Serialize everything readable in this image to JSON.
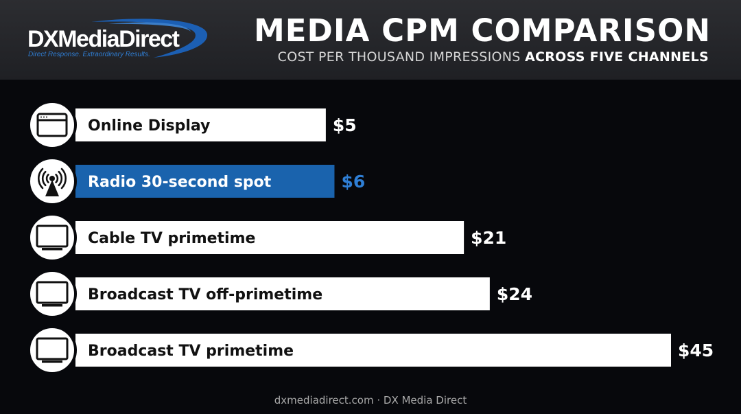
{
  "header": {
    "logo_text": "DXMediaDirect",
    "logo_tagline": "Direct Response. Extraordinary Results.",
    "title": "MEDIA CPM COMPARISON",
    "subtitle_part1": "COST PER THOUSAND IMPRESSIONS",
    "subtitle_part2": "ACROSS FIVE CHANNELS"
  },
  "footer": {
    "text": "dxmediadirect.com · DX Media Direct"
  },
  "colors": {
    "bar_default": "#ffffff",
    "bar_highlight": "#1a63ad",
    "label_default": "#111111",
    "label_highlight": "#ffffff",
    "value_default": "#ffffff",
    "value_highlight": "#2f7fd6",
    "background": "#07080c"
  },
  "chart_data": {
    "type": "bar",
    "orientation": "horizontal",
    "title": "MEDIA CPM COMPARISON",
    "subtitle": "COST PER THOUSAND IMPRESSIONS ACROSS FIVE CHANNELS",
    "xlabel": "",
    "ylabel": "",
    "xlim": [
      0,
      45
    ],
    "grid": false,
    "legend": "none",
    "categories": [
      "Online Display",
      "Radio 30-second spot",
      "Cable TV primetime",
      "Broadcast TV off-primetime",
      "Broadcast TV primetime"
    ],
    "values": [
      5,
      6,
      21,
      24,
      45
    ],
    "value_labels": [
      "$5",
      "$6",
      "$21",
      "$24",
      "$45"
    ],
    "icons": [
      "browser-window-icon",
      "radio-tower-icon",
      "tv-icon",
      "tv-icon",
      "tv-icon"
    ],
    "highlighted": [
      false,
      true,
      false,
      false,
      false
    ]
  }
}
